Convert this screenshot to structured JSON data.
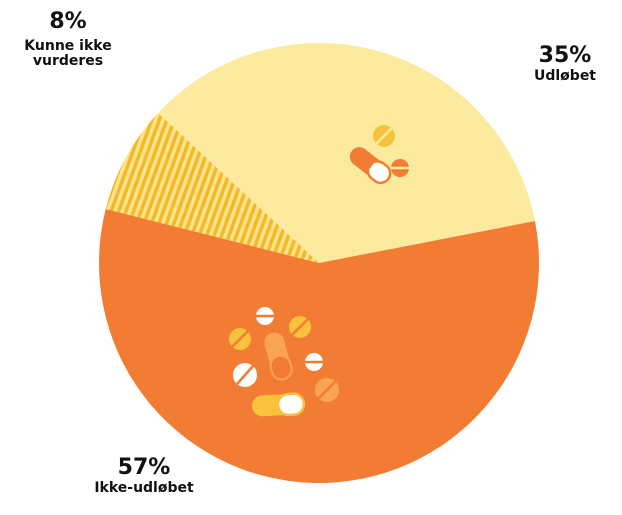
{
  "chart_data": {
    "type": "pie",
    "slices": [
      {
        "label": "Udløbet",
        "value": 35,
        "value_label": "35%",
        "color": "#FCEB9E",
        "icons": "pills"
      },
      {
        "label": "Ikke-udløbet",
        "value": 57,
        "value_label": "57%",
        "color": "#F27C33",
        "icons": "pills"
      },
      {
        "label": "Kunne ikke vurderes",
        "value": 8,
        "value_label": "8%",
        "color": "#F9C23C",
        "pattern": "stripes"
      }
    ],
    "legend": "none"
  }
}
